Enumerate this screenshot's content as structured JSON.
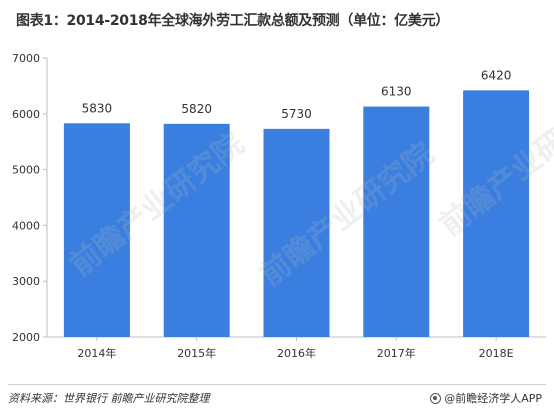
{
  "title": "图表1：2014-2018年全球海外劳工汇款总额及预测（单位：亿美元）",
  "source": "资料来源：世界银行  前瞻产业研究院整理",
  "brand": "@前瞻经济学人APP",
  "watermark": "前瞻产业研究院",
  "colors": {
    "bar": "#3A7FE0",
    "axis": "#BFBFBF",
    "text": "#333333"
  },
  "chart_data": {
    "type": "bar",
    "categories": [
      "2014年",
      "2015年",
      "2016年",
      "2017年",
      "2018E"
    ],
    "values": [
      5830,
      5820,
      5730,
      6130,
      6420
    ],
    "data_labels": [
      "5830",
      "5820",
      "5730",
      "6130",
      "6420"
    ],
    "ylim": [
      2000,
      7000
    ],
    "yticks": [
      2000,
      3000,
      4000,
      5000,
      6000,
      7000
    ],
    "grid": false,
    "legend": "none"
  }
}
